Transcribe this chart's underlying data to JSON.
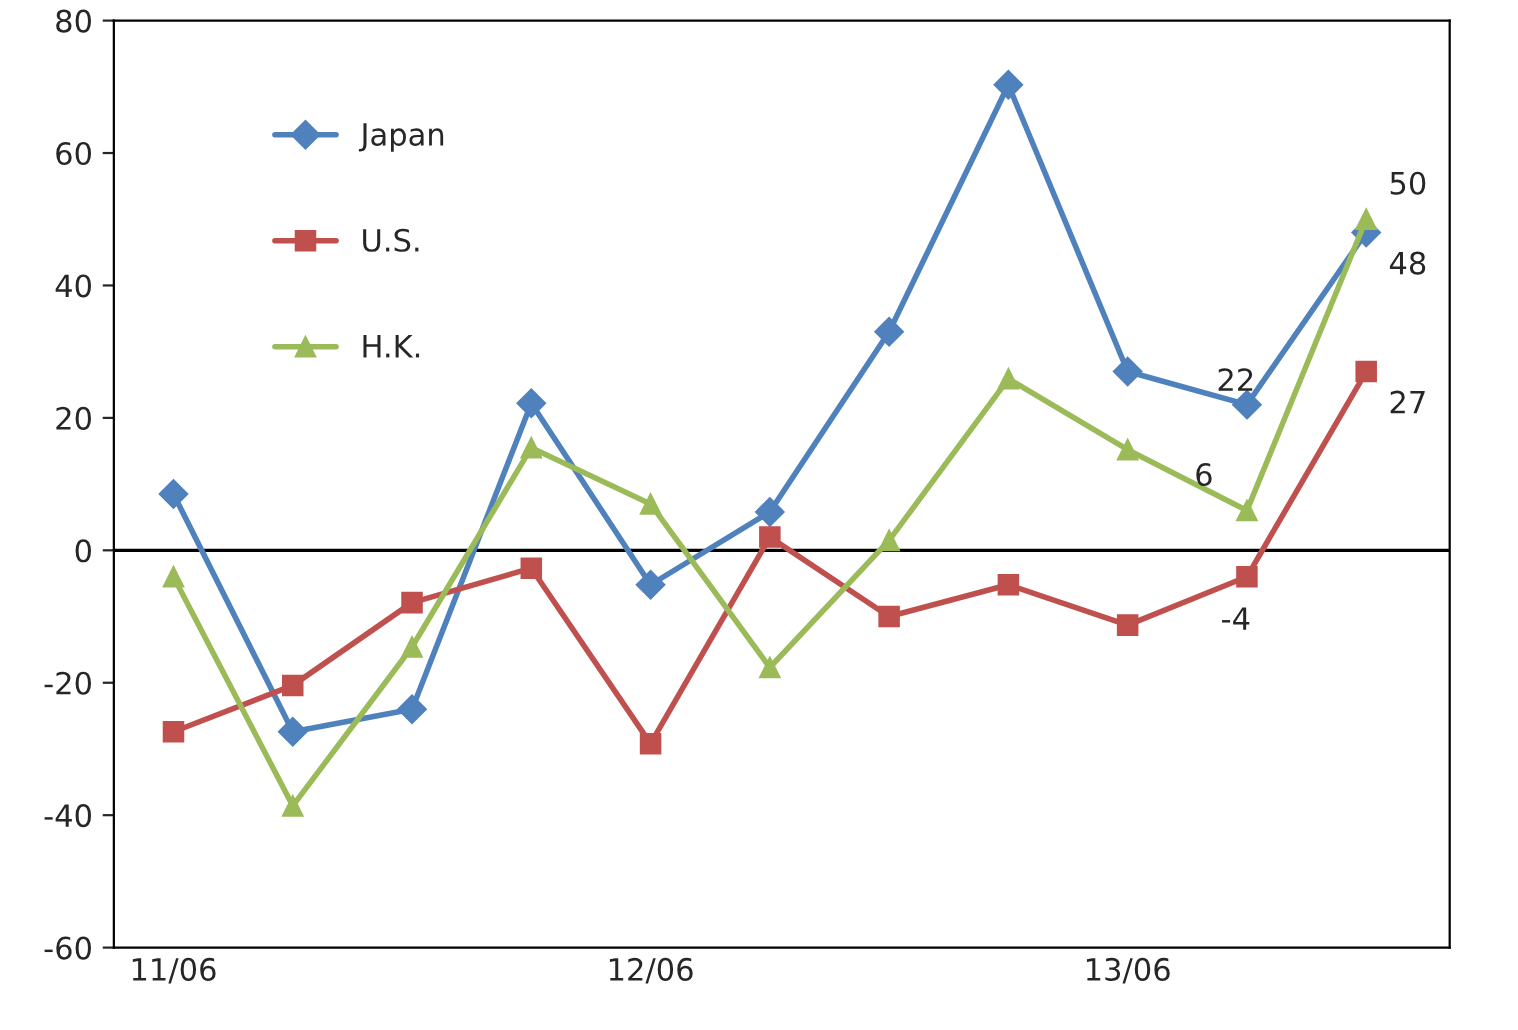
{
  "chart_data": {
    "type": "line",
    "categories": [
      "11/06",
      null,
      null,
      null,
      "12/06",
      null,
      null,
      null,
      "13/06",
      null,
      null
    ],
    "series": [
      {
        "name": "Japan",
        "color": "#4f81bd",
        "marker": "diamond",
        "values": [
          8.5,
          -27.4,
          -24,
          22.2,
          -5.2,
          5.8,
          33,
          70.3,
          27,
          22,
          48
        ],
        "value_labels": [
          null,
          null,
          null,
          null,
          null,
          null,
          null,
          null,
          null,
          "22",
          "48"
        ]
      },
      {
        "name": "U.S.",
        "color": "#c0504d",
        "marker": "square",
        "values": [
          -27.4,
          -20.4,
          -7.9,
          -2.7,
          -29.2,
          2,
          -10,
          -5.2,
          -11.3,
          -4,
          27
        ],
        "value_labels": [
          null,
          null,
          null,
          null,
          null,
          null,
          null,
          null,
          null,
          "-4",
          "27"
        ]
      },
      {
        "name": "H.K.",
        "color": "#9bbb59",
        "marker": "triangle",
        "values": [
          -4,
          -38.6,
          -14.6,
          15.5,
          7,
          -17.7,
          1.5,
          25.9,
          15.2,
          6,
          50
        ],
        "value_labels": [
          null,
          null,
          null,
          null,
          null,
          null,
          null,
          null,
          null,
          "6",
          "50"
        ]
      }
    ],
    "ylim": [
      -60,
      80
    ],
    "yticks": [
      -60,
      -40,
      -20,
      0,
      20,
      40,
      60,
      80
    ],
    "ref_lines": [
      {
        "axis": "y",
        "value": 0,
        "color": "#000000"
      }
    ],
    "grid": false,
    "legend": "top left",
    "line_style": "solid"
  }
}
